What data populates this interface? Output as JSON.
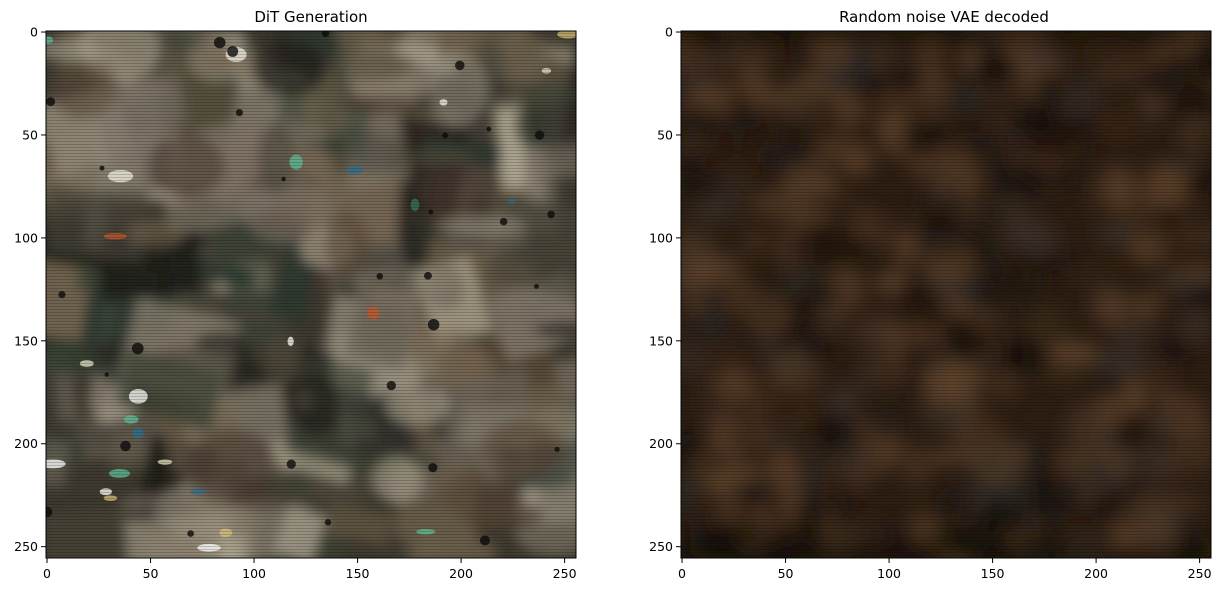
{
  "figure": {
    "panels": [
      {
        "title": "DiT Generation",
        "x_ticks": [
          "0",
          "50",
          "100",
          "150",
          "200",
          "250"
        ],
        "y_ticks": [
          "0",
          "50",
          "100",
          "150",
          "200",
          "250"
        ],
        "x_range": [
          0,
          256
        ],
        "y_range": [
          0,
          256
        ],
        "style": "abstract-collage",
        "base_color": "#3e3a2f"
      },
      {
        "title": "Random noise VAE decoded",
        "x_ticks": [
          "0",
          "50",
          "100",
          "150",
          "200",
          "250"
        ],
        "y_ticks": [
          "0",
          "50",
          "100",
          "150",
          "200",
          "250"
        ],
        "x_range": [
          0,
          256
        ],
        "y_range": [
          0,
          256
        ],
        "style": "dark-brown-noise",
        "base_color": "#2e1f14"
      }
    ]
  }
}
